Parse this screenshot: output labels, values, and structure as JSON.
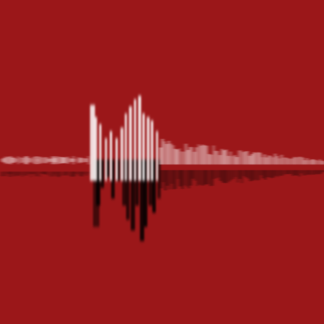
{
  "artwork": {
    "subject": "waveform-icon",
    "colors": {
      "background": "#9b1719",
      "highlight": "#ffffff",
      "shadow": "#000000"
    }
  }
}
